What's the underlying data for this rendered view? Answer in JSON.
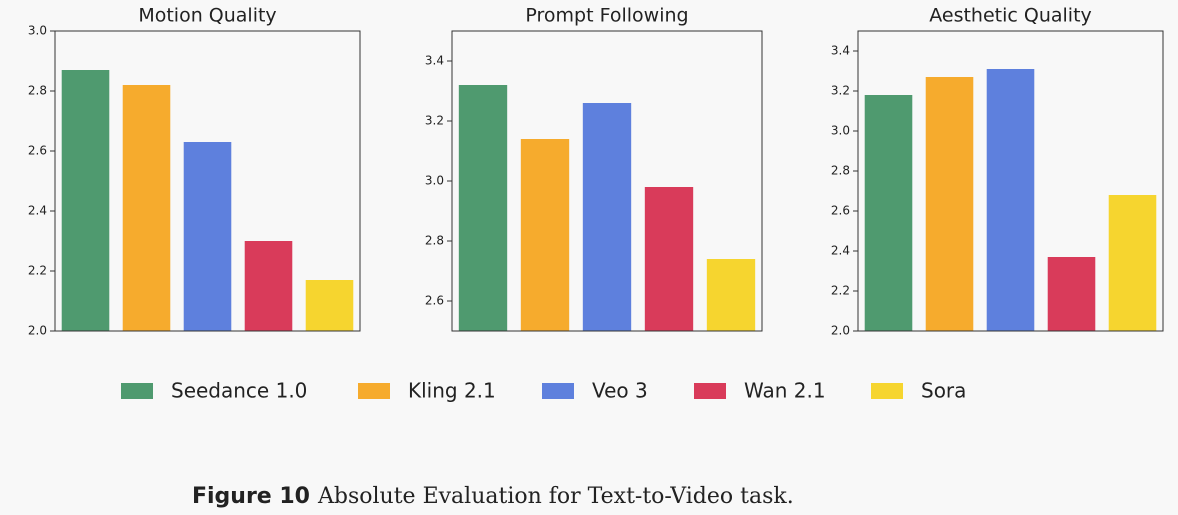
{
  "chart_data": [
    {
      "type": "bar",
      "title": "Motion Quality",
      "values": [
        2.87,
        2.82,
        2.63,
        2.3,
        2.17
      ],
      "ylim": [
        2.0,
        3.0
      ],
      "yticks": [
        {
          "value": 2.0,
          "label": "2.0"
        },
        2.2,
        2.4,
        2.6,
        2.8,
        {
          "value": 3.0,
          "label": "3.0"
        }
      ]
    },
    {
      "type": "bar",
      "title": "Prompt Following",
      "values": [
        3.32,
        3.14,
        3.26,
        2.98,
        2.74
      ],
      "ylim": [
        2.5,
        3.5
      ],
      "yticks": [
        2.6,
        2.8,
        {
          "value": 3.0,
          "label": "3.0"
        },
        3.2,
        3.4
      ]
    },
    {
      "type": "bar",
      "title": "Aesthetic Quality",
      "values": [
        3.18,
        3.27,
        3.31,
        2.37,
        2.68
      ],
      "ylim": [
        2.0,
        3.5
      ],
      "yticks": [
        {
          "value": 2.0,
          "label": "2.0"
        },
        2.2,
        2.4,
        2.6,
        2.8,
        {
          "value": 3.0,
          "label": "3.0"
        },
        3.2,
        3.4
      ]
    }
  ],
  "legend": {
    "names": [
      "Seedance 1.0",
      "Kling 2.1",
      "Veo 3",
      "Wan 2.1",
      "Sora"
    ],
    "colors": [
      "#4f9a6f",
      "#f6ab2d",
      "#5e80dd",
      "#d93b5a",
      "#f6d52f"
    ]
  },
  "caption": {
    "label": "Figure 10",
    "text": "Absolute Evaluation for Text-to-Video task."
  }
}
